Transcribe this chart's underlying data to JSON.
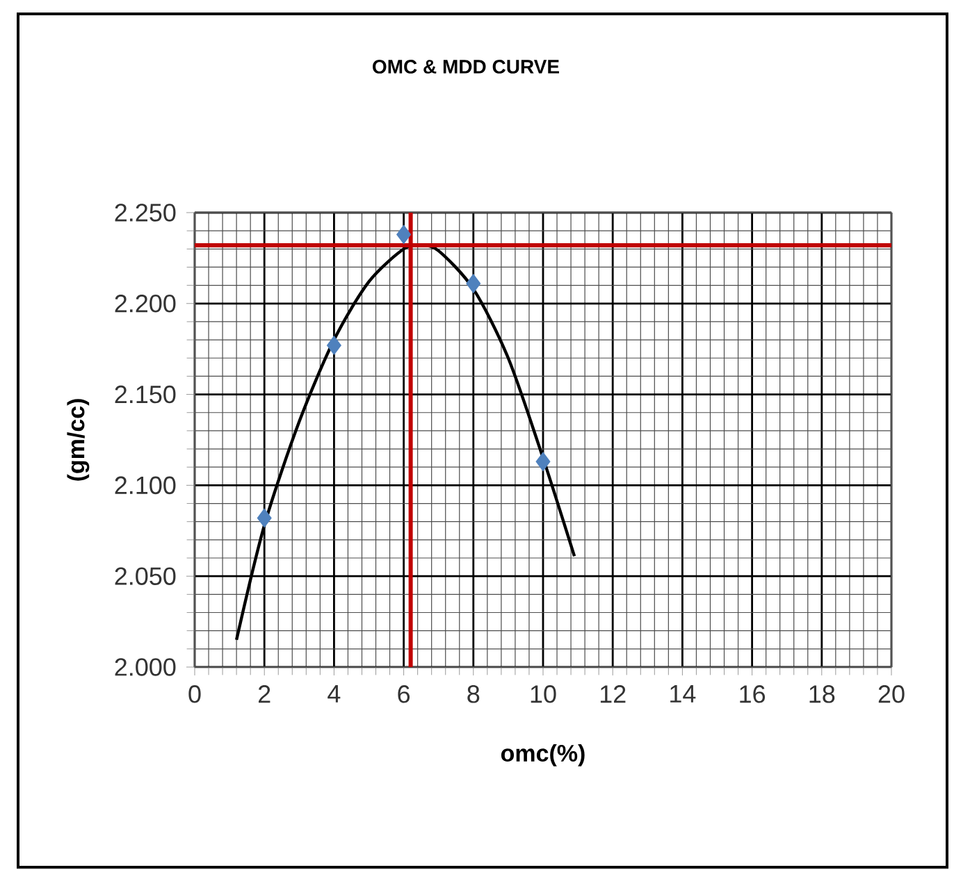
{
  "chart_data": {
    "type": "scatter",
    "title": "OMC & MDD CURVE",
    "xlabel": "omc(%)",
    "ylabel": "(gm/cc)",
    "xlim": [
      0,
      20
    ],
    "xticks": [
      0,
      2,
      4,
      6,
      8,
      10,
      12,
      14,
      16,
      18,
      20
    ],
    "ylim": [
      2.0,
      2.25
    ],
    "yticks": [
      {
        "value": 2.0,
        "label": "2.000"
      },
      {
        "value": 2.05,
        "label": "2.050"
      },
      {
        "value": 2.1,
        "label": "2.100"
      },
      {
        "value": 2.15,
        "label": "2.150"
      },
      {
        "value": 2.2,
        "label": "2.200"
      },
      {
        "value": 2.25,
        "label": "2.250"
      }
    ],
    "grid": true,
    "series": [
      {
        "marker": "diamond",
        "color": "#4f81bd",
        "x": [
          2,
          4,
          6,
          8,
          10
        ],
        "values": [
          2.082,
          2.177,
          2.238,
          2.211,
          2.113
        ]
      },
      {
        "type": "line",
        "marker": "none",
        "line_style": "solid",
        "color": "#000000",
        "x": [
          1.2,
          2,
          3,
          4,
          5,
          6,
          6.5,
          7,
          8,
          9,
          10,
          10.9
        ],
        "values": [
          2.015,
          2.078,
          2.135,
          2.18,
          2.212,
          2.23,
          2.232,
          2.229,
          2.208,
          2.17,
          2.115,
          2.061
        ]
      }
    ],
    "ref_lines": [
      {
        "axis": "x",
        "value": 6.2,
        "color": "#c00000"
      },
      {
        "axis": "y",
        "value": 2.232,
        "color": "#c00000"
      }
    ]
  }
}
